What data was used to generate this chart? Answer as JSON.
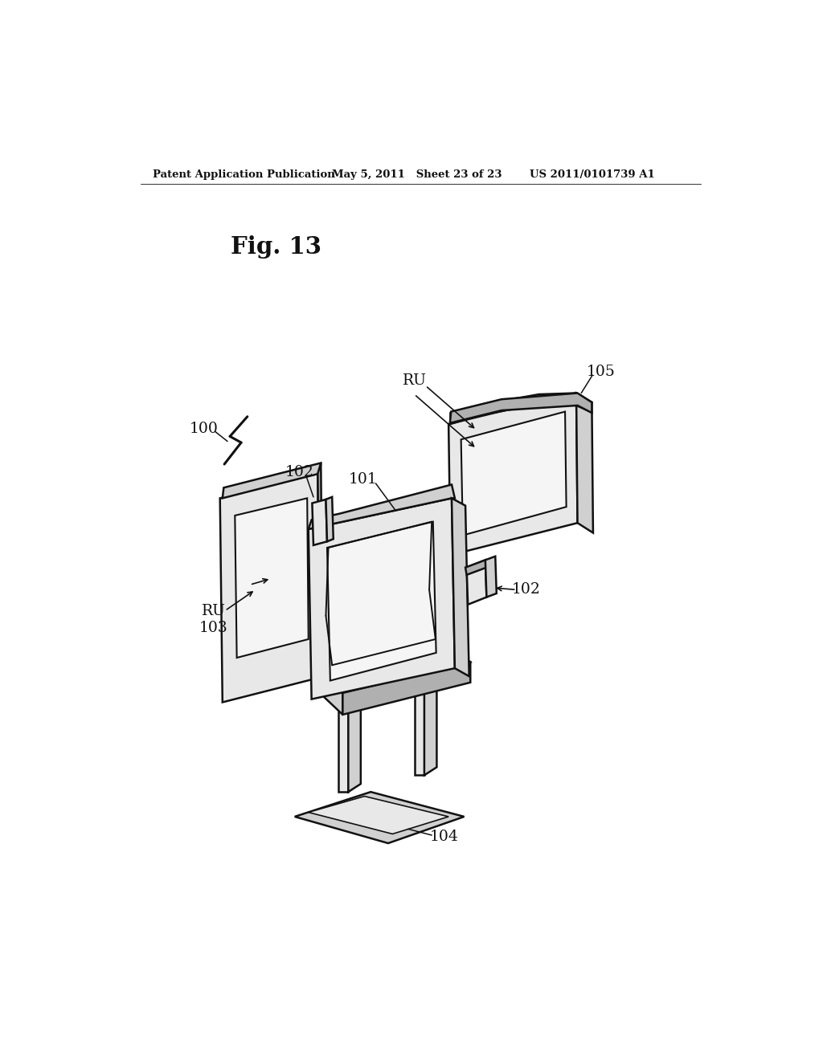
{
  "background_color": "#ffffff",
  "header_left": "Patent Application Publication",
  "header_center": "May 5, 2011   Sheet 23 of 23",
  "header_right": "US 2011/0101739 A1",
  "fig_label": "Fig. 13",
  "line_color": "#111111",
  "fill_light": "#e8e8e8",
  "fill_medium": "#d0d0d0",
  "fill_dark": "#b0b0b0",
  "fill_white": "#f5f5f5",
  "fill_seat": "#e0e0e0"
}
